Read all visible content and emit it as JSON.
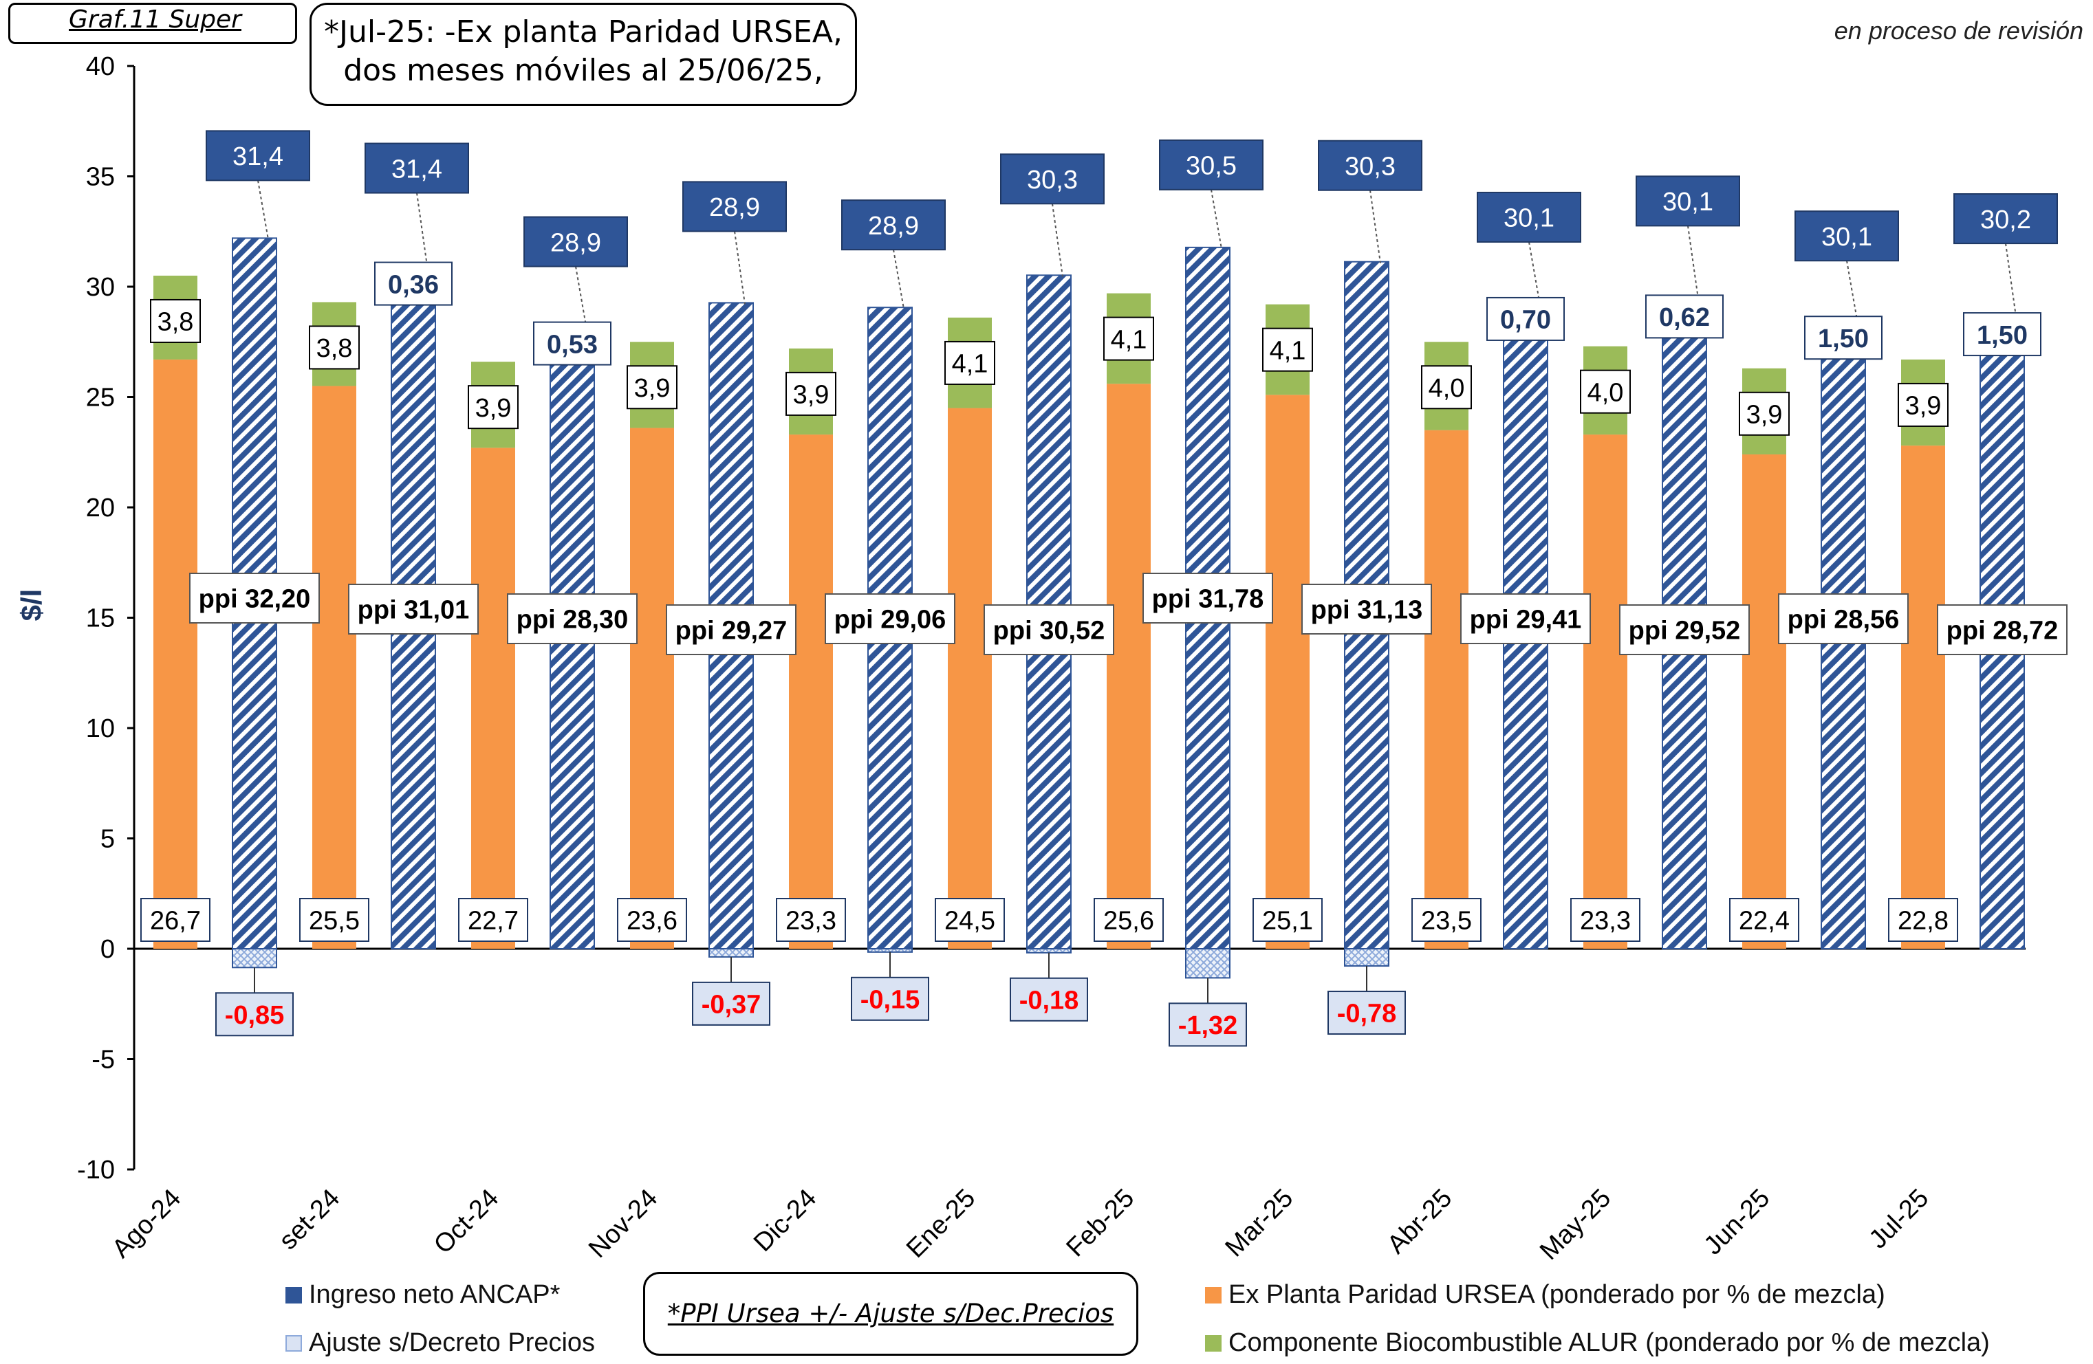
{
  "header": {
    "graf_label": "Graf.11  Super",
    "note_line1": "*Jul-25: -Ex planta Paridad URSEA,",
    "note_line2": "dos meses móviles al 25/06/25,",
    "review_note": "en proceso de revisión"
  },
  "legend": {
    "ingreso": "Ingreso neto ANCAP*",
    "ajuste": "Ajuste s/Decreto Precios",
    "explanta": "Ex Planta Paridad URSEA (ponderado por % de mezcla)",
    "bio": "Componente Biocombustible ALUR (ponderado por % de mezcla)",
    "formula": "*PPI Ursea +/- Ajuste s/Dec.Precios"
  },
  "colors": {
    "ingreso": "#2f5597",
    "ajuste": "#dae3f3",
    "explanta": "#f79646",
    "bio": "#9bbb59",
    "negative_label": "#ff0000"
  },
  "chart_data": {
    "type": "bar",
    "ylabel": "$/l",
    "ylim": [
      -10,
      40
    ],
    "yticks": [
      -10,
      -5,
      0,
      5,
      10,
      15,
      20,
      25,
      30,
      35,
      40
    ],
    "categories": [
      "Ago-24",
      "set-24",
      "Oct-24",
      "Nov-24",
      "Dic-24",
      "Ene-25",
      "Feb-25",
      "Mar-25",
      "Abr-25",
      "May-25",
      "Jun-25",
      "Jul-25"
    ],
    "series": [
      {
        "name": "Ex Planta Paridad URSEA (ponderado por % de mezcla)",
        "values": [
          26.7,
          25.5,
          22.7,
          23.6,
          23.3,
          24.5,
          25.6,
          25.1,
          23.5,
          23.3,
          22.4,
          22.8
        ],
        "labels": [
          "26,7",
          "25,5",
          "22,7",
          "23,6",
          "23,3",
          "24,5",
          "25,6",
          "25,1",
          "23,5",
          "23,3",
          "22,4",
          "22,8"
        ]
      },
      {
        "name": "Componente Biocombustible ALUR (ponderado por % de mezcla)",
        "values": [
          3.8,
          3.8,
          3.9,
          3.9,
          3.9,
          4.1,
          4.1,
          4.1,
          4.0,
          4.0,
          3.9,
          3.9
        ],
        "labels": [
          "3,8",
          "3,8",
          "3,9",
          "3,9",
          "3,9",
          "4,1",
          "4,1",
          "4,1",
          "4,0",
          "4,0",
          "3,9",
          "3,9"
        ]
      },
      {
        "name": "Ingreso neto ANCAP*",
        "values": [
          31.4,
          31.4,
          28.9,
          28.9,
          28.9,
          30.3,
          30.5,
          30.3,
          30.1,
          30.1,
          30.1,
          30.2
        ],
        "labels": [
          "31,4",
          "31,4",
          "28,9",
          "28,9",
          "28,9",
          "30,3",
          "30,5",
          "30,3",
          "30,1",
          "30,1",
          "30,1",
          "30,2"
        ]
      },
      {
        "name": "Ajuste s/Decreto Precios",
        "values": [
          -0.85,
          0.36,
          0.53,
          -0.37,
          -0.15,
          -0.18,
          -1.32,
          -0.78,
          0.7,
          0.62,
          1.5,
          1.5
        ],
        "labels": [
          "-0,85",
          "0,36",
          "0,53",
          "-0,37",
          "-0,15",
          "-0,18",
          "-1,32",
          "-0,78",
          "0,70",
          "0,62",
          "1,50",
          "1,50"
        ]
      }
    ],
    "ppi": {
      "values": [
        32.2,
        31.01,
        28.3,
        29.27,
        29.06,
        30.52,
        31.78,
        31.13,
        29.41,
        29.52,
        28.56,
        28.72
      ],
      "labels": [
        "ppi 32,20",
        "ppi 31,01",
        "ppi 28,30",
        "ppi 29,27",
        "ppi 29,06",
        "ppi 30,52",
        "ppi 31,78",
        "ppi 31,13",
        "ppi 29,41",
        "ppi 29,52",
        "ppi 28,56",
        "ppi 28,72"
      ]
    }
  }
}
